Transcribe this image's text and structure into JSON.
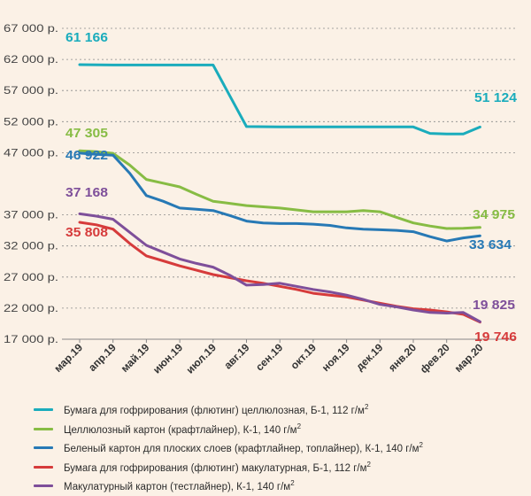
{
  "chart_data": {
    "type": "line",
    "categories": [
      "мар.19",
      "апр.19",
      "май.19",
      "июн.19",
      "июл.19",
      "авг.19",
      "сен.19",
      "окт.19",
      "ноя.19",
      "дек.19",
      "янв.20",
      "фев.20",
      "мар.20"
    ],
    "y_ticks": [
      "17 000 р.",
      "22 000 р.",
      "27 000 р.",
      "32 000 р.",
      "37 000 р.",
      "47 000 р.",
      "52 000 р.",
      "57 000 р.",
      "62 000 р.",
      "67 000 р."
    ],
    "y_tick_values": [
      17000,
      22000,
      27000,
      32000,
      37000,
      47000,
      52000,
      57000,
      62000,
      67000
    ],
    "ylim": [
      17000,
      67000
    ],
    "grid": "horizontal dashed",
    "legend_position": "bottom",
    "series": [
      {
        "name": "Бумага для гофрирования (флютинг) целлюлозная, Б-1, 112 г/м",
        "color": "#1aacbc",
        "x": [
          0,
          1,
          2,
          3,
          4,
          5,
          6,
          7,
          8,
          9,
          10,
          10.5,
          11,
          11.5,
          12
        ],
        "values": [
          61166,
          61100,
          61100,
          61100,
          61100,
          51200,
          51150,
          51150,
          51150,
          51150,
          51150,
          50100,
          50000,
          50000,
          51124
        ],
        "label_start": "61 166",
        "label_end": "51 124"
      },
      {
        "name": "Целлюлозный картон (крафтлайнер), К-1, 140 г/м",
        "color": "#87bc44",
        "x": [
          0,
          0.5,
          1,
          1.5,
          2,
          2.5,
          3,
          3.5,
          4,
          4.5,
          5,
          5.5,
          6,
          6.5,
          7,
          7.5,
          8,
          8.5,
          9,
          9.5,
          10,
          10.5,
          11,
          11.5,
          12
        ],
        "values": [
          47305,
          47150,
          46900,
          45000,
          42700,
          42100,
          41500,
          40300,
          39200,
          38850,
          38500,
          38300,
          38100,
          37800,
          37500,
          37500,
          37500,
          37700,
          37500,
          36600,
          35700,
          35200,
          34800,
          34850,
          34975
        ],
        "label_start": "47 305",
        "label_end": "34 975"
      },
      {
        "name": "Беленый картон для плоских слоев (крафтлайнер, топлайнер), К-1, 140 г/м",
        "color": "#2779b5",
        "x": [
          0,
          0.5,
          1,
          1.5,
          2,
          2.5,
          3,
          3.5,
          4,
          4.5,
          5,
          5.5,
          6,
          6.5,
          7,
          7.5,
          8,
          8.5,
          9,
          9.5,
          10,
          10.5,
          11,
          11.5,
          12
        ],
        "values": [
          46922,
          46750,
          46600,
          43700,
          40100,
          39200,
          38100,
          37900,
          37700,
          36900,
          36000,
          35700,
          35600,
          35600,
          35500,
          35300,
          34900,
          34700,
          34600,
          34500,
          34300,
          33500,
          32800,
          33300,
          33634
        ],
        "label_start": "46 922",
        "label_end": "33 634"
      },
      {
        "name": "Бумага для гофрирования (флютинг) макулатурная, Б-1, 112 г/м",
        "color": "#d63b3b",
        "x": [
          0,
          0.5,
          1,
          1.5,
          2,
          2.5,
          3,
          3.5,
          4,
          4.5,
          5,
          5.5,
          6,
          6.5,
          7,
          7.5,
          8,
          8.5,
          9,
          9.5,
          10,
          10.5,
          11,
          11.5,
          12
        ],
        "values": [
          35808,
          35400,
          34700,
          32400,
          30400,
          29600,
          28800,
          28100,
          27400,
          26900,
          26400,
          26000,
          25500,
          25000,
          24400,
          24100,
          23800,
          23300,
          22800,
          22300,
          21900,
          21700,
          21400,
          21000,
          19746
        ],
        "label_start": "35 808",
        "label_end": "19 746"
      },
      {
        "name": "Макулатурный картон (тестлайнер), К-1, 140 г/м",
        "color": "#7e4f9a",
        "x": [
          0,
          0.5,
          1,
          1.5,
          2,
          2.5,
          3,
          3.5,
          4,
          4.5,
          5,
          5.5,
          6,
          6.5,
          7,
          7.5,
          8,
          8.5,
          9,
          9.5,
          10,
          10.5,
          11,
          11.5,
          12
        ],
        "values": [
          37168,
          36800,
          36300,
          34200,
          32100,
          31000,
          29900,
          29200,
          28600,
          27300,
          25700,
          25800,
          26000,
          25500,
          25000,
          24600,
          24100,
          23400,
          22600,
          22200,
          21700,
          21300,
          21200,
          21300,
          19825
        ],
        "label_start": "37 168",
        "label_end": "19 825"
      }
    ]
  },
  "legend": {
    "superscript": "2",
    "items": [
      {
        "label": "Бумага для гофрирования (флютинг) целлюлозная, Б-1, 112 г/м",
        "color": "#1aacbc"
      },
      {
        "label": "Целлюлозный картон (крафтлайнер), К-1, 140 г/м",
        "color": "#87bc44"
      },
      {
        "label": "Беленый картон для плоских слоев (крафтлайнер, топлайнер), К-1, 140 г/м",
        "color": "#2779b5"
      },
      {
        "label": "Бумага для гофрирования (флютинг) макулатурная, Б-1, 112 г/м",
        "color": "#d63b3b"
      },
      {
        "label": "Макулатурный картон (тестлайнер), К-1, 140 г/м",
        "color": "#7e4f9a"
      }
    ]
  }
}
